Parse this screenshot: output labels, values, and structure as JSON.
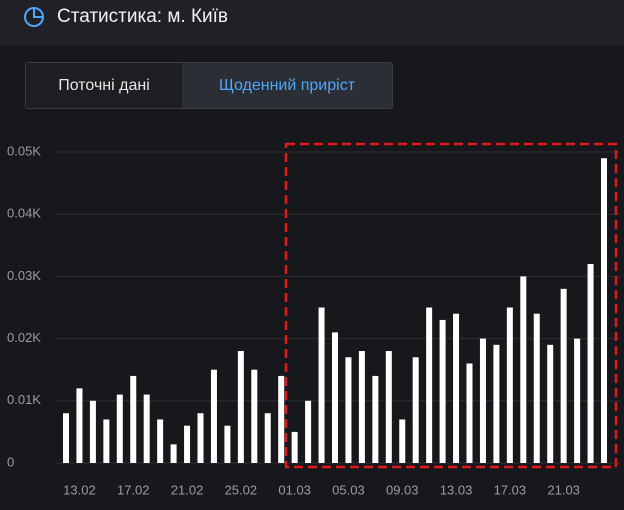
{
  "header": {
    "title": "Статистика: м. Київ"
  },
  "tabs": [
    "Поточні дані",
    "Щоденний приріст"
  ],
  "chart_data": {
    "type": "bar",
    "categories": [
      null,
      "13.02",
      null,
      null,
      null,
      "17.02",
      null,
      null,
      null,
      "21.02",
      null,
      null,
      null,
      "25.02",
      null,
      null,
      null,
      "01.03",
      null,
      null,
      null,
      "05.03",
      null,
      null,
      null,
      "09.03",
      null,
      null,
      null,
      "13.03",
      null,
      null,
      null,
      "17.03",
      null,
      null,
      null,
      "21.03",
      null,
      null,
      null
    ],
    "values": [
      8,
      12,
      10,
      7,
      11,
      14,
      11,
      7,
      3,
      6,
      8,
      15,
      6,
      18,
      15,
      8,
      14,
      5,
      10,
      25,
      21,
      17,
      18,
      14,
      18,
      7,
      17,
      25,
      23,
      24,
      16,
      20,
      19,
      25,
      30,
      24,
      19,
      28,
      20,
      32,
      49
    ],
    "color": "#ffffff",
    "ylim": [
      0,
      50
    ],
    "yticks": [
      0,
      {
        "value": 10,
        "label": "0.01K"
      },
      {
        "value": 20,
        "label": "0.02K"
      },
      {
        "value": 30,
        "label": "0.03K"
      },
      {
        "value": 40,
        "label": "0.04K"
      },
      {
        "value": 50,
        "label": "0.05K"
      }
    ],
    "grid": true
  }
}
